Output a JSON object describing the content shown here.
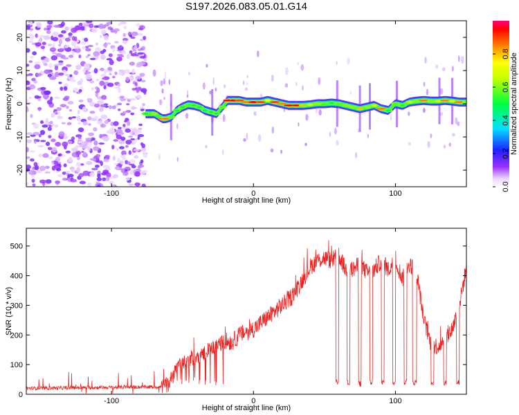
{
  "chart_data": [
    {
      "type": "heatmap",
      "title": "S197.2026.083.05.01.G14",
      "xlabel": "Height of straight line (km)",
      "ylabel": "Frequency (Hz)",
      "xlim": [
        -160,
        150
      ],
      "ylim": [
        -25,
        25
      ],
      "xticks": [
        -100,
        0,
        100
      ],
      "xtick_labels": [
        "-100",
        "0",
        "100"
      ],
      "yticks": [
        -20,
        -10,
        0,
        10,
        20
      ],
      "ytick_labels": [
        "-20",
        "-10",
        "0",
        "10",
        "20"
      ],
      "colorbar": {
        "label": "Normalized spectral amplitude",
        "range": [
          0,
          1
        ],
        "ticks": [
          0,
          0.2,
          0.4,
          0.6,
          0.8
        ],
        "tick_labels": [
          "0.0",
          "0.2",
          "0.4",
          "0.6",
          "0.8"
        ]
      },
      "noise_region_x": [
        -160,
        -76
      ],
      "track": {
        "x": [
          -76,
          -70,
          -64,
          -62,
          -58,
          -54,
          -50,
          -46,
          -42,
          -38,
          -34,
          -30,
          -26,
          -22,
          -18,
          -14,
          -10,
          -5,
          0,
          5,
          10,
          15,
          20,
          25,
          30,
          35,
          40,
          45,
          50,
          55,
          60,
          65,
          70,
          75,
          80,
          85,
          90,
          95,
          100,
          105,
          110,
          115,
          120,
          125,
          130,
          135,
          140,
          145,
          150
        ],
        "y": [
          -3,
          -3,
          -4.5,
          -4.5,
          -4,
          -2,
          -1,
          -0.3,
          -0.5,
          -1,
          -2,
          -2.5,
          -3,
          -1,
          1,
          1,
          1,
          0.5,
          0.5,
          0.5,
          1,
          0.5,
          0,
          -0.5,
          -0.5,
          -0.5,
          -0.3,
          0,
          0,
          0.2,
          0,
          -0.5,
          -1,
          -1.5,
          -1,
          -0.5,
          -1.5,
          -2,
          0,
          -0.5,
          0.5,
          0.8,
          1,
          0.8,
          0.8,
          1,
          0.8,
          0.5,
          0.5
        ],
        "amp": [
          0.45,
          0.6,
          0.85,
          0.85,
          0.55,
          0.5,
          0.5,
          0.55,
          0.5,
          0.5,
          0.45,
          0.5,
          0.45,
          0.55,
          0.95,
          0.95,
          0.9,
          0.85,
          0.95,
          0.9,
          0.75,
          0.9,
          0.85,
          0.95,
          0.95,
          0.8,
          0.7,
          0.6,
          0.55,
          0.5,
          0.55,
          0.6,
          0.6,
          0.8,
          0.6,
          0.7,
          0.85,
          0.5,
          0.55,
          0.5,
          0.65,
          0.6,
          0.85,
          0.6,
          0.7,
          0.85,
          0.7,
          0.85,
          0.6
        ]
      }
    },
    {
      "type": "line",
      "xlabel": "Height of straight line (km)",
      "ylabel": "SNR (10 * v/v)",
      "xlim": [
        -160,
        150
      ],
      "ylim": [
        0,
        560
      ],
      "xticks": [
        -100,
        0,
        100
      ],
      "xtick_labels": [
        "-100",
        "0",
        "100"
      ],
      "yticks": [
        0,
        100,
        200,
        300,
        400,
        500
      ],
      "ytick_labels": [
        "0",
        "100",
        "200",
        "300",
        "400",
        "500"
      ],
      "color": "#ee2222",
      "envelope": {
        "x": [
          -160,
          -65,
          -60,
          -55,
          -50,
          -45,
          -40,
          -35,
          -30,
          -25,
          -20,
          -15,
          -10,
          -5,
          0,
          5,
          10,
          15,
          20,
          25,
          30,
          35,
          40,
          45,
          50,
          55,
          60,
          65,
          70,
          75,
          80,
          85,
          90,
          95,
          100,
          105,
          110,
          115,
          120,
          125,
          130,
          135,
          140,
          145,
          150
        ],
        "y": [
          20,
          25,
          30,
          90,
          110,
          120,
          120,
          140,
          155,
          165,
          180,
          175,
          200,
          210,
          220,
          240,
          260,
          280,
          300,
          320,
          350,
          390,
          430,
          450,
          460,
          450,
          470,
          420,
          420,
          440,
          410,
          420,
          450,
          420,
          450,
          390,
          440,
          410,
          250,
          170,
          160,
          190,
          220,
          300,
          430
        ]
      },
      "dropouts": [
        {
          "x0": 58,
          "x1": 60,
          "y": 40
        },
        {
          "x0": 66,
          "x1": 68,
          "y": 40
        },
        {
          "x0": 74,
          "x1": 76,
          "y": 35
        },
        {
          "x0": 82,
          "x1": 84,
          "y": 40
        },
        {
          "x0": 90,
          "x1": 92,
          "y": 40
        },
        {
          "x0": 98,
          "x1": 100,
          "y": 40
        },
        {
          "x0": 106,
          "x1": 108,
          "y": 40
        },
        {
          "x0": 112,
          "x1": 115,
          "y": 40
        },
        {
          "x0": 125,
          "x1": 127,
          "y": 40
        },
        {
          "x0": 134,
          "x1": 136,
          "y": 40
        },
        {
          "x0": 143,
          "x1": 145,
          "y": 40
        }
      ]
    }
  ]
}
